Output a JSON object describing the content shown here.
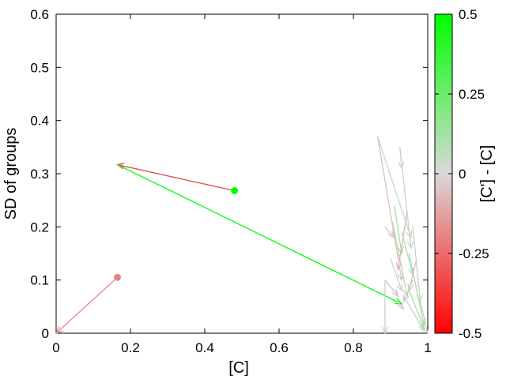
{
  "chart_data": {
    "type": "vector-field",
    "xlabel": "[C]",
    "ylabel": "SD of groups",
    "xlim": [
      0,
      1
    ],
    "ylim": [
      0,
      0.6
    ],
    "xticks": [
      0,
      0.2,
      0.4,
      0.6,
      0.8,
      1
    ],
    "xtick_labels": [
      "0",
      "0.2",
      "0.4",
      "0.6",
      "0.8",
      "1"
    ],
    "yticks": [
      0,
      0.1,
      0.2,
      0.3,
      0.4,
      0.5,
      0.6
    ],
    "ytick_labels": [
      "0",
      "0.1",
      "0.2",
      "0.3",
      "0.4",
      "0.5",
      "0.6"
    ],
    "grid": false,
    "colorbar": {
      "label": "[C'] - [C]",
      "range": [
        -0.5,
        0.5
      ],
      "ticks": [
        0.5,
        0.25,
        0,
        -0.25,
        -0.5
      ],
      "tick_labels": [
        "0.5",
        "0.25",
        "0",
        "-0.25",
        "-0.5"
      ],
      "colors": {
        "high": "#00ff00",
        "mid": "#d9d9d9",
        "low": "#ff0000"
      }
    },
    "points": [
      {
        "x": 0.48,
        "y": 0.268,
        "color": "#00ff00"
      },
      {
        "x": 0.165,
        "y": 0.105,
        "color": "#e08888"
      }
    ],
    "arrows": [
      {
        "x0": 0.48,
        "y0": 0.268,
        "x1": 0.165,
        "y1": 0.317,
        "color": "#e05050"
      },
      {
        "x0": 0.165,
        "y0": 0.317,
        "x1": 0.93,
        "y1": 0.055,
        "color": "#00ff00"
      },
      {
        "x0": 0.165,
        "y0": 0.105,
        "x1": 0.0,
        "y1": 0.0,
        "color": "#e08888"
      },
      {
        "x0": 0.865,
        "y0": 0.37,
        "x1": 0.955,
        "y1": 0.18,
        "color": "#c8d8c8"
      },
      {
        "x0": 0.865,
        "y0": 0.37,
        "x1": 0.93,
        "y1": 0.1,
        "color": "#d8c0c0"
      },
      {
        "x0": 0.925,
        "y0": 0.35,
        "x1": 0.93,
        "y1": 0.31,
        "color": "#c0d8c0"
      },
      {
        "x0": 0.925,
        "y0": 0.35,
        "x1": 0.955,
        "y1": 0.16,
        "color": "#d4cccc"
      },
      {
        "x0": 0.91,
        "y0": 0.24,
        "x1": 0.93,
        "y1": 0.15,
        "color": "#a8dca8"
      },
      {
        "x0": 0.905,
        "y0": 0.21,
        "x1": 0.945,
        "y1": 0.07,
        "color": "#b8d8b8"
      },
      {
        "x0": 0.945,
        "y0": 0.23,
        "x1": 0.92,
        "y1": 0.12,
        "color": "#d8b8b8"
      },
      {
        "x0": 0.885,
        "y0": 0.2,
        "x1": 0.91,
        "y1": 0.18,
        "color": "#d8c4c4"
      },
      {
        "x0": 0.93,
        "y0": 0.19,
        "x1": 0.96,
        "y1": 0.11,
        "color": "#b0dcb0"
      },
      {
        "x0": 0.95,
        "y0": 0.15,
        "x1": 0.99,
        "y1": 0.015,
        "color": "#a0e0a0"
      },
      {
        "x0": 0.885,
        "y0": 0.1,
        "x1": 0.92,
        "y1": 0.07,
        "color": "#dcc0c0"
      },
      {
        "x0": 0.885,
        "y0": 0.1,
        "x1": 0.885,
        "y1": 0.0,
        "color": "#c8d0c8"
      },
      {
        "x0": 0.935,
        "y0": 0.07,
        "x1": 0.99,
        "y1": 0.005,
        "color": "#b8dab8"
      },
      {
        "x0": 0.96,
        "y0": 0.1,
        "x1": 0.935,
        "y1": 0.06,
        "color": "#d8c8c8"
      },
      {
        "x0": 0.96,
        "y0": 0.2,
        "x1": 0.98,
        "y1": 0.06,
        "color": "#c4d6c4"
      },
      {
        "x0": 0.98,
        "y0": 0.06,
        "x1": 1.0,
        "y1": 0.0,
        "color": "#cdcdcd"
      },
      {
        "x0": 0.97,
        "y0": 0.14,
        "x1": 0.95,
        "y1": 0.08,
        "color": "#d6c2c2"
      },
      {
        "x0": 0.92,
        "y0": 0.06,
        "x1": 0.935,
        "y1": 0.045,
        "color": "#d4cccc"
      },
      {
        "x0": 0.95,
        "y0": 0.08,
        "x1": 0.99,
        "y1": 0.01,
        "color": "#aadcaa"
      },
      {
        "x0": 0.9,
        "y0": 0.14,
        "x1": 0.93,
        "y1": 0.08,
        "color": "#c8d4c8"
      }
    ]
  }
}
